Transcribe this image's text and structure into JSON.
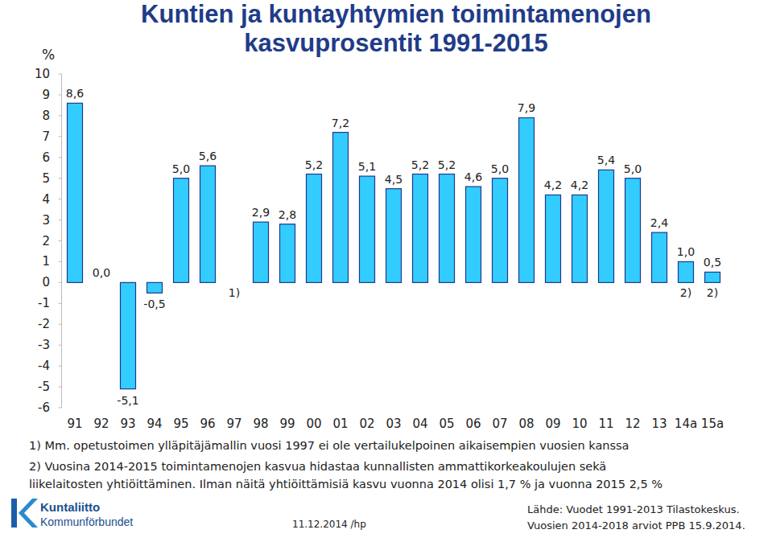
{
  "chart_data": {
    "type": "bar",
    "title": [
      "Kuntien ja kuntayhtymien toimintamenojen",
      "kasvuprosentit 1991-2015"
    ],
    "ylabel": "%",
    "categories": [
      "91",
      "92",
      "93",
      "94",
      "95",
      "96",
      "97",
      "98",
      "99",
      "00",
      "01",
      "02",
      "03",
      "04",
      "05",
      "06",
      "07",
      "08",
      "09",
      "10",
      "11",
      "12",
      "13",
      "14a",
      "15a"
    ],
    "values": [
      8.6,
      0.0,
      -5.1,
      -0.5,
      5.0,
      5.6,
      null,
      2.9,
      2.8,
      5.2,
      7.2,
      5.1,
      4.5,
      5.2,
      5.2,
      4.6,
      5.0,
      7.9,
      4.2,
      4.2,
      5.4,
      5.0,
      2.4,
      1.0,
      0.5
    ],
    "value_labels": [
      "8,6",
      "0,0",
      "-5,1",
      "-0,5",
      "5,0",
      "5,6",
      null,
      "2,9",
      "2,8",
      "5,2",
      "7,2",
      "5,1",
      "4,5",
      "5,2",
      "5,2",
      "4,6",
      "5,0",
      "7,9",
      "4,2",
      "4,2",
      "5,4",
      "5,0",
      "2,4",
      "1,0",
      "0,5"
    ],
    "color": "#33CCFF",
    "data_labels": true,
    "grid": false,
    "ylim": [
      -6,
      10
    ],
    "yticks": [
      -6,
      -5,
      -4,
      -3,
      -2,
      -1,
      0,
      1,
      2,
      3,
      4,
      5,
      6,
      7,
      8,
      9,
      10
    ],
    "annotations": [
      {
        "text": "1)",
        "x": "97"
      },
      {
        "text": "2)",
        "x": "14a"
      },
      {
        "text": "2)",
        "x": "15a"
      }
    ],
    "notes": [
      "1) Mm. opetustoimen ylläpitäjämallin vuosi 1997 ei ole vertailukelpoinen aikaisempien vuosien kanssa",
      "2) Vuosina 2014-2015 toimintamenojen kasvua hidastaa kunnallisten ammattikorkeakoulujen sekä",
      "liikelaitosten yhtiöittäminen. Ilman näitä yhtiöittämisiä kasvu vuonna 2014 olisi 1,7 % ja vuonna 2015 2,5 %"
    ],
    "logo": [
      "Kuntaliitto",
      "Kommunförbundet"
    ],
    "date": "11.12.2014 /hp",
    "source": [
      "Lähde: Vuodet 1991-2013 Tilastokeskus.",
      "Vuosien 2014-2018 arviot PPB 15.9.2014."
    ]
  }
}
